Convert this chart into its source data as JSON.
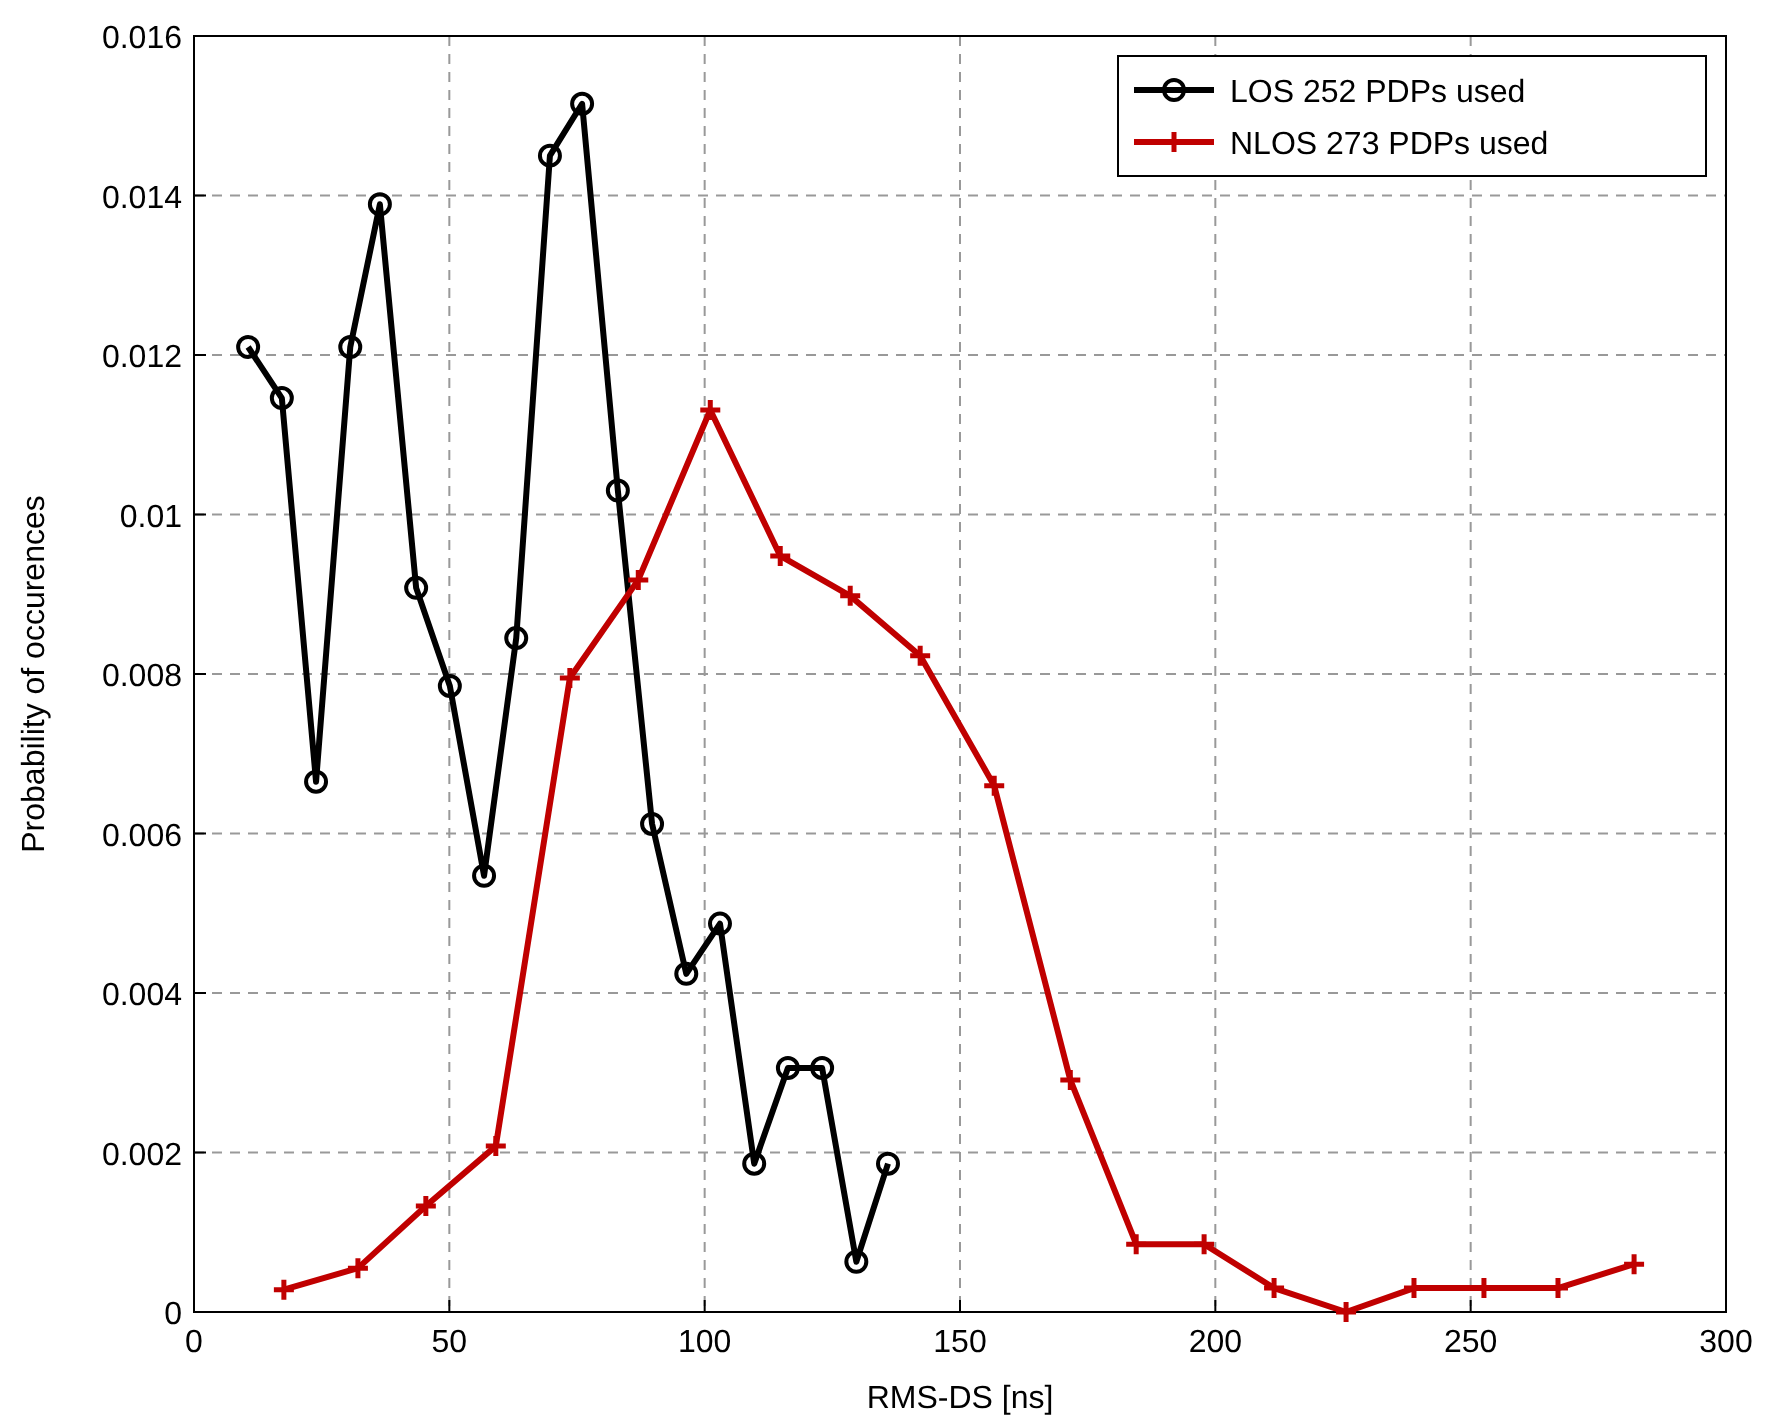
{
  "chart_data": {
    "type": "line",
    "xlabel": "RMS-DS [ns]",
    "ylabel": "Probability of occurences",
    "xlim": [
      0,
      300
    ],
    "xticks": [
      0,
      50,
      100,
      150,
      200,
      250,
      300
    ],
    "ylim": [
      0,
      0.016
    ],
    "yticks": [
      0,
      0.002,
      0.004,
      0.006,
      0.008,
      0.01,
      0.012,
      0.014,
      0.016
    ],
    "grid": true,
    "legend": "top right",
    "line_style": "solid",
    "series": [
      {
        "name": "LOS 252 PDPs used",
        "color": "#000000",
        "marker": "circle",
        "x": [
          10.6,
          17.2,
          23.9,
          30.6,
          36.4,
          43.5,
          50.1,
          56.8,
          63.1,
          69.7,
          76.0,
          83.0,
          89.7,
          96.4,
          103.0,
          109.7,
          116.3,
          123.0,
          129.7,
          135.9
        ],
        "values": [
          0.0121,
          0.01146,
          0.00665,
          0.0121,
          0.01389,
          0.00908,
          0.00785,
          0.00547,
          0.00845,
          0.0145,
          0.01515,
          0.0103,
          0.00612,
          0.00424,
          0.00487,
          0.00186,
          0.00306,
          0.00306,
          0.00063,
          0.00186
        ]
      },
      {
        "name": "NLOS 273 PDPs used",
        "color": "#c00000",
        "marker": "cross",
        "x": [
          17.6,
          32.1,
          45.4,
          59.1,
          73.6,
          87.0,
          101.1,
          114.8,
          128.5,
          142.2,
          156.7,
          171.6,
          184.5,
          197.8,
          211.5,
          225.6,
          238.9,
          252.6,
          267.1,
          282.0
        ],
        "values": [
          0.00028,
          0.00055,
          0.00133,
          0.00208,
          0.00795,
          0.00918,
          0.01131,
          0.00948,
          0.00898,
          0.00823,
          0.0066,
          0.00291,
          0.00085,
          0.00085,
          0.0003,
          0,
          0.0003,
          0.0003,
          0.0003,
          0.0006
        ]
      }
    ]
  }
}
